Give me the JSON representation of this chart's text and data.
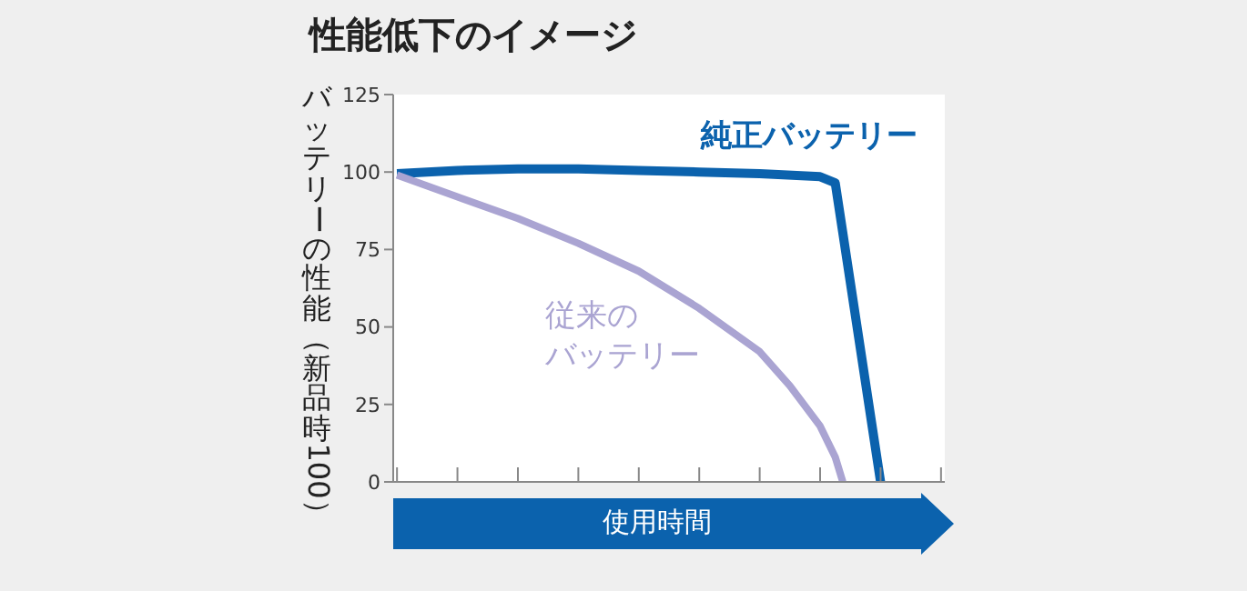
{
  "chart_data": {
    "type": "line",
    "title": "性能低下のイメージ",
    "xlabel": "使用時間",
    "ylabel": "バッテリーの性能（新品時100）",
    "categories": [
      null,
      null,
      null,
      null,
      null,
      null,
      null,
      null,
      null,
      null,
      null,
      null,
      null,
      null,
      null,
      null,
      null,
      null,
      null,
      null,
      null,
      null,
      null,
      null,
      null,
      null,
      null,
      null,
      null,
      null,
      null,
      null,
      null,
      null,
      null,
      null,
      null,
      null,
      null,
      null,
      null,
      null,
      null,
      null,
      null,
      null,
      null,
      null,
      null,
      null,
      null,
      null,
      null,
      null,
      null,
      null,
      null,
      null,
      null,
      null,
      null,
      null,
      null,
      null,
      null,
      null,
      null,
      null,
      null,
      null,
      null,
      null,
      null
    ],
    "ylim": [
      0,
      125
    ],
    "yticks": [
      0,
      25,
      50,
      75,
      100,
      125
    ],
    "marker": "none",
    "line_style": "solid",
    "series": [
      {
        "name": "純正バッテリー",
        "color": "#0b62ad",
        "values": [
          99.5,
          null,
          null,
          null,
          null,
          null,
          null,
          null,
          100.5,
          null,
          null,
          null,
          null,
          null,
          null,
          null,
          101,
          null,
          null,
          null,
          null,
          null,
          null,
          null,
          101,
          null,
          null,
          null,
          null,
          null,
          null,
          null,
          100.5,
          null,
          null,
          null,
          null,
          null,
          null,
          null,
          100,
          null,
          null,
          null,
          null,
          null,
          null,
          null,
          99.5,
          null,
          null,
          null,
          null,
          null,
          null,
          null,
          98.5,
          null,
          96.5,
          null,
          null,
          null,
          null,
          null,
          0,
          null,
          null,
          null,
          null,
          null,
          null,
          null,
          null
        ]
      },
      {
        "name": "従来のバッテリー",
        "color": "#aaa4d2",
        "values": [
          99,
          null,
          null,
          null,
          95.5,
          null,
          null,
          null,
          92,
          null,
          null,
          null,
          null,
          null,
          null,
          null,
          85,
          null,
          null,
          null,
          null,
          null,
          null,
          null,
          77,
          null,
          null,
          null,
          null,
          null,
          null,
          null,
          68,
          null,
          null,
          null,
          null,
          null,
          null,
          null,
          56,
          null,
          null,
          null,
          null,
          null,
          null,
          null,
          42,
          null,
          null,
          null,
          31,
          null,
          null,
          null,
          18,
          null,
          8,
          0,
          null,
          null,
          null,
          null,
          null,
          null,
          null,
          null,
          null,
          null,
          null,
          null,
          null
        ]
      }
    ]
  }
}
